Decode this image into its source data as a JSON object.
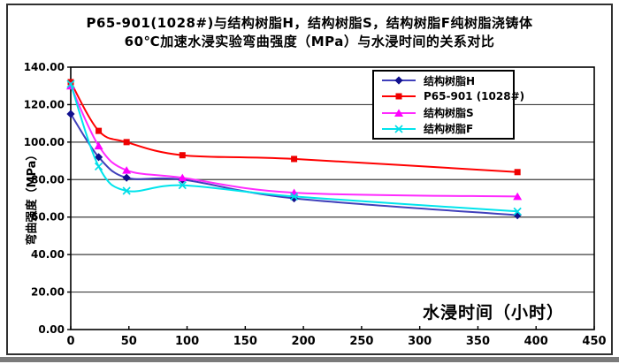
{
  "title": {
    "line1": "P65-901(1028#)与结构树脂H，结构树脂S，结构树脂F纯树脂浇铸体",
    "line2": "60℃加速水浸实验弯曲强度（MPa）与水浸时间的关系对比"
  },
  "axes": {
    "y_label": "弯曲强度（MPa）",
    "x_label": "水浸时间（小时）",
    "y_ticks": [
      "0.00",
      "20.00",
      "40.00",
      "60.00",
      "80.00",
      "100.00",
      "120.00",
      "140.00"
    ],
    "x_ticks": [
      "0",
      "50",
      "100",
      "150",
      "200",
      "250",
      "300",
      "350",
      "400",
      "450"
    ]
  },
  "colors": {
    "grid": "#3d3d3d",
    "plot_border": "#000000",
    "frame_border": "#303030",
    "window_edge": "#7a7a7a"
  },
  "chart_data": {
    "type": "line",
    "title": "P65-901(1028#)与结构树脂H，结构树脂S，结构树脂F纯树脂浇铸体 60℃加速水浸实验弯曲强度（MPa）与水浸时间的关系对比",
    "xlabel": "水浸时间（小时）",
    "ylabel": "弯曲强度（MPa）",
    "xlim": [
      0,
      450
    ],
    "ylim": [
      0,
      140
    ],
    "y_gridline_step": 20,
    "grid": "horizontal-only",
    "smooth": true,
    "legend_position": "top-right-inside",
    "x": [
      0,
      24,
      48,
      96,
      192,
      384
    ],
    "series": [
      {
        "key": "h",
        "name": "结构树脂H",
        "marker": "diamond",
        "color": "#4040bb",
        "marker_color": "#10108e",
        "values": [
          115,
          92,
          81,
          80,
          70,
          61
        ]
      },
      {
        "key": "p65",
        "name": "P65-901 (1028#)",
        "marker": "square",
        "color": "#ff0000",
        "marker_color": "#ee0000",
        "values": [
          132,
          106,
          100,
          93,
          91,
          84
        ]
      },
      {
        "key": "s",
        "name": "结构树脂S",
        "marker": "triangle",
        "color": "#ff2bff",
        "marker_color": "#ff00ff",
        "values": [
          130,
          98,
          85,
          81,
          73,
          71
        ]
      },
      {
        "key": "f",
        "name": "结构树脂F",
        "marker": "x",
        "color": "#00e4ec",
        "marker_color": "#00dce6",
        "values": [
          131,
          87,
          74,
          77,
          71,
          63
        ]
      }
    ]
  }
}
